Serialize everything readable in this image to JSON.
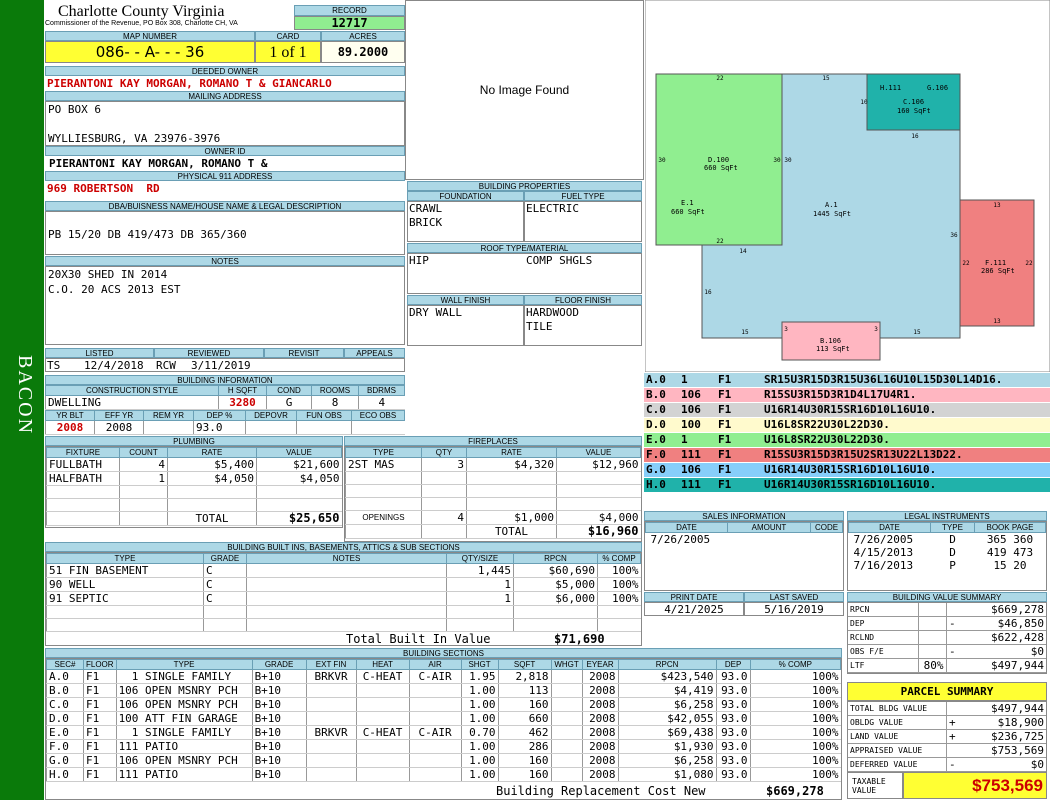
{
  "side_label": "BACON",
  "header": {
    "county": "Charlotte County Virginia",
    "commissioner": "Commissioner of the Revenue, PO Box 308, Charlotte CH, VA",
    "record_label": "RECORD",
    "record": "12717",
    "map_label": "MAP NUMBER",
    "map": "086- - A- - - 36",
    "card_label": "CARD",
    "card": "1 of 1",
    "acres_label": "ACRES",
    "acres": "89.2000"
  },
  "owner": {
    "deeded_label": "DEEDED OWNER",
    "deeded": "PIERANTONI KAY MORGAN, ROMANO T & GIANCARLO",
    "mailing_label": "MAILING ADDRESS",
    "mail1": "PO BOX 6",
    "mail2": "WYLLIESBURG, VA 23976-3976",
    "ownerid_label": "OWNER ID",
    "ownerid": "PIERANTONI KAY MORGAN, ROMANO T &",
    "phys_label": "PHYSICAL 911 ADDRESS",
    "phys": "969 ROBERTSON  RD",
    "dba_label": "DBA/BUISNESS NAME/HOUSE NAME & LEGAL DESCRIPTION",
    "dba": "PB 15/20 DB 419/473 DB 365/360",
    "notes_label": "NOTES",
    "note1": "20X30 SHED IN 2014",
    "note2": "C.O. 20 ACS 2013 EST"
  },
  "image": {
    "text": "No Image Found"
  },
  "bprops": {
    "title": "BUILDING PROPERTIES",
    "foundation_label": "FOUNDATION",
    "fuel_label": "FUEL TYPE",
    "found1": "CRAWL",
    "found2": "BRICK",
    "fuel": "ELECTRIC",
    "roof_label": "ROOF TYPE/MATERIAL",
    "roof1": "HIP",
    "roof2": "COMP SHGLS",
    "wall_label": "WALL FINISH",
    "floor_label": "FLOOR FINISH",
    "wall": "DRY WALL",
    "floor1": "HARDWOOD",
    "floor2": "TILE"
  },
  "listing": {
    "listed_label": "LISTED",
    "reviewed_label": "REVIEWED",
    "revisit_label": "REVISIT",
    "appeals_label": "APPEALS",
    "listed_by": "TS",
    "listed_date": "12/4/2018",
    "reviewed_by": "RCW",
    "reviewed_date": "3/11/2019"
  },
  "binfo": {
    "title": "BUILDING INFORMATION",
    "cs_label": "CONSTRUCTION STYLE",
    "hsqft_label": "H SQFT",
    "cond_label": "COND",
    "rooms_label": "ROOMS",
    "bdrms_label": "BDRMS",
    "style": "DWELLING",
    "hsqft": "3280",
    "cond": "G",
    "rooms": "8",
    "bdrms": "4",
    "yrblt_label": "YR BLT",
    "effyr_label": "EFF YR",
    "remyr_label": "REM YR",
    "dep_label": "DEP %",
    "depovr_label": "DEPOVR",
    "funobs_label": "FUN OBS",
    "ecoobs_label": "ECO OBS",
    "yrblt": "2008",
    "effyr": "2008",
    "dep": "93.0"
  },
  "plumbing": {
    "title": "PLUMBING",
    "h_fixture": "FIXTURE",
    "h_count": "COUNT",
    "h_rate": "RATE",
    "h_value": "VALUE",
    "rows": [
      {
        "fixture": "FULLBATH",
        "count": "4",
        "rate": "$5,400",
        "value": "$21,600"
      },
      {
        "fixture": "HALFBATH",
        "count": "1",
        "rate": "$4,050",
        "value": "$4,050"
      }
    ],
    "total_label": "TOTAL",
    "total": "$25,650"
  },
  "fireplaces": {
    "title": "FIREPLACES",
    "h_type": "TYPE",
    "h_qty": "QTY",
    "h_rate": "RATE",
    "h_value": "VALUE",
    "rows": [
      {
        "type": "2ST MAS",
        "qty": "3",
        "rate": "$4,320",
        "value": "$12,960"
      }
    ],
    "openings_label": "OPENINGS",
    "openings_qty": "4",
    "openings_rate": "$1,000",
    "openings_value": "$4,000",
    "total_label": "TOTAL",
    "total": "$16,960"
  },
  "builtins": {
    "title": "BUILDING BUILT INS, BASEMENTS, ATTICS & SUB SECTIONS",
    "h_type": "TYPE",
    "h_grade": "GRADE",
    "h_notes": "NOTES",
    "h_qty": "QTY/SIZE",
    "h_rpcn": "RPCN",
    "h_comp": "% COMP",
    "rows": [
      {
        "type": "51 FIN BASEMENT",
        "grade": "C",
        "qty": "1,445",
        "rpcn": "$60,690",
        "comp": "100%"
      },
      {
        "type": "90 WELL",
        "grade": "C",
        "qty": "1",
        "rpcn": "$5,000",
        "comp": "100%"
      },
      {
        "type": "91 SEPTIC",
        "grade": "C",
        "qty": "1",
        "rpcn": "$6,000",
        "comp": "100%"
      }
    ],
    "total_label": "Total Built In Value",
    "total": "$71,690"
  },
  "sections": {
    "title": "BUILDING SECTIONS",
    "h": [
      "SEC#",
      "FLOOR",
      "TYPE",
      "GRADE",
      "EXT FIN",
      "HEAT",
      "AIR",
      "SHGT",
      "SQFT",
      "WHGT",
      "EYEAR",
      "RPCN",
      "DEP",
      "% COMP"
    ],
    "rows": [
      {
        "sec": "A.0",
        "floor": "F1",
        "type": "  1 SINGLE FAMILY",
        "grade": "B+10",
        "ext": "BRKVR",
        "heat": "C-HEAT",
        "air": "C-AIR",
        "shgt": "1.95",
        "sqft": "2,818",
        "eyear": "2008",
        "rpcn": "$423,540",
        "dep": "93.0",
        "comp": "100%"
      },
      {
        "sec": "B.0",
        "floor": "F1",
        "type": "106 OPEN MSNRY PCH",
        "grade": "B+10",
        "ext": "",
        "heat": "",
        "air": "",
        "shgt": "1.00",
        "sqft": "113",
        "eyear": "2008",
        "rpcn": "$4,419",
        "dep": "93.0",
        "comp": "100%"
      },
      {
        "sec": "C.0",
        "floor": "F1",
        "type": "106 OPEN MSNRY PCH",
        "grade": "B+10",
        "ext": "",
        "heat": "",
        "air": "",
        "shgt": "1.00",
        "sqft": "160",
        "eyear": "2008",
        "rpcn": "$6,258",
        "dep": "93.0",
        "comp": "100%"
      },
      {
        "sec": "D.0",
        "floor": "F1",
        "type": "100 ATT FIN GARAGE",
        "grade": "B+10",
        "ext": "",
        "heat": "",
        "air": "",
        "shgt": "1.00",
        "sqft": "660",
        "eyear": "2008",
        "rpcn": "$42,055",
        "dep": "93.0",
        "comp": "100%"
      },
      {
        "sec": "E.0",
        "floor": "F1",
        "type": "  1 SINGLE FAMILY",
        "grade": "B+10",
        "ext": "BRKVR",
        "heat": "C-HEAT",
        "air": "C-AIR",
        "shgt": "0.70",
        "sqft": "462",
        "eyear": "2008",
        "rpcn": "$69,438",
        "dep": "93.0",
        "comp": "100%"
      },
      {
        "sec": "F.0",
        "floor": "F1",
        "type": "111 PATIO",
        "grade": "B+10",
        "ext": "",
        "heat": "",
        "air": "",
        "shgt": "1.00",
        "sqft": "286",
        "eyear": "2008",
        "rpcn": "$1,930",
        "dep": "93.0",
        "comp": "100%"
      },
      {
        "sec": "G.0",
        "floor": "F1",
        "type": "106 OPEN MSNRY PCH",
        "grade": "B+10",
        "ext": "",
        "heat": "",
        "air": "",
        "shgt": "1.00",
        "sqft": "160",
        "eyear": "2008",
        "rpcn": "$6,258",
        "dep": "93.0",
        "comp": "100%"
      },
      {
        "sec": "H.0",
        "floor": "F1",
        "type": "111 PATIO",
        "grade": "B+10",
        "ext": "",
        "heat": "",
        "air": "",
        "shgt": "1.00",
        "sqft": "160",
        "eyear": "2008",
        "rpcn": "$1,080",
        "dep": "93.0",
        "comp": "100%"
      }
    ],
    "total_label": "Building Replacement Cost New",
    "total": "$669,278"
  },
  "sketch": {
    "labels": [
      {
        "id": "d",
        "t1": "D.100",
        "t2": "660 SqFt"
      },
      {
        "id": "e",
        "t1": "E.1",
        "t2": "660 SqFt"
      },
      {
        "id": "a",
        "t1": "A.1",
        "t2": "1445 SqFt"
      },
      {
        "id": "h",
        "t1": "H.111",
        "t2": "G.106"
      },
      {
        "id": "c",
        "t1": "C.106",
        "t2": "160 SqFt"
      },
      {
        "id": "f",
        "t1": "F.111",
        "t2": "286 SqFt"
      },
      {
        "id": "b",
        "t1": "B.106",
        "t2": "113 SqFt"
      }
    ],
    "dims": [
      "22",
      "15",
      "10",
      "16",
      "30",
      "30",
      "30",
      "14",
      "22",
      "36",
      "13",
      "22",
      "22",
      "16",
      "13",
      "15",
      "3",
      "3",
      "15"
    ]
  },
  "vectors": [
    {
      "sec": "A.0",
      "n": "1",
      "f": "F1",
      "v": "SR15U3R15D3R15U36L16U10L15D30L14D16.",
      "bg": "#add8e6"
    },
    {
      "sec": "B.0",
      "n": "106",
      "f": "F1",
      "v": "R15SU3R15D3R1D4L17U4R1.",
      "bg": "#ffb6c1"
    },
    {
      "sec": "C.0",
      "n": "106",
      "f": "F1",
      "v": "U16R14U30R15SR16D10L16U10.",
      "bg": "#d3d3d3"
    },
    {
      "sec": "D.0",
      "n": "100",
      "f": "F1",
      "v": "U16L8SR22U30L22D30.",
      "bg": "#fffacd"
    },
    {
      "sec": "E.0",
      "n": "1",
      "f": "F1",
      "v": "U16L8SR22U30L22D30.",
      "bg": "#90ee90"
    },
    {
      "sec": "F.0",
      "n": "111",
      "f": "F1",
      "v": "R15SU3R15D3R15U2SR13U22L13D22.",
      "bg": "#f08080"
    },
    {
      "sec": "G.0",
      "n": "106",
      "f": "F1",
      "v": "U16R14U30R15SR16D10L16U10.",
      "bg": "#87cefa"
    },
    {
      "sec": "H.0",
      "n": "111",
      "f": "F1",
      "v": "U16R14U30R15SR16D10L16U10.",
      "bg": "#20b2aa"
    }
  ],
  "sales": {
    "title": "SALES INFORMATION",
    "h_date": "DATE",
    "h_amount": "AMOUNT",
    "h_code": "CODE",
    "rows": [
      {
        "date": "7/26/2005",
        "amount": "",
        "code": ""
      }
    ]
  },
  "legal": {
    "title": "LEGAL INSTRUMENTS",
    "h_date": "DATE",
    "h_type": "TYPE",
    "h_book": "BOOK PAGE",
    "rows": [
      {
        "date": "7/26/2005",
        "type": "D",
        "book": "365 360"
      },
      {
        "date": "4/15/2013",
        "type": "D",
        "book": "419 473"
      },
      {
        "date": "7/16/2013",
        "type": "P",
        "book": "15 20"
      }
    ]
  },
  "print": {
    "print_label": "PRINT DATE",
    "saved_label": "LAST SAVED",
    "print": "4/21/2025",
    "saved": "5/16/2019"
  },
  "bvs": {
    "title": "BUILDING VALUE SUMMARY",
    "rows": [
      {
        "k": "RPCN",
        "s": "",
        "v": "$669,278"
      },
      {
        "k": "DEP",
        "s": "-",
        "v": "$46,850"
      },
      {
        "k": "RCLND",
        "s": "",
        "v": "$622,428"
      },
      {
        "k": "OBS F/E",
        "s": "-",
        "v": "$0"
      },
      {
        "k": "LTF",
        "p": "80%",
        "s": "",
        "v": "$497,944"
      }
    ]
  },
  "parcel": {
    "title": "PARCEL SUMMARY",
    "rows": [
      {
        "k": "TOTAL BLDG VALUE",
        "s": "",
        "v": "$497,944"
      },
      {
        "k": "OBLDG VALUE",
        "s": "+",
        "v": "$18,900"
      },
      {
        "k": "LAND VALUE",
        "s": "+",
        "v": "$236,725"
      },
      {
        "k": "APPRAISED VALUE",
        "s": "",
        "v": "$753,569"
      },
      {
        "k": "DEFERRED VALUE",
        "s": "-",
        "v": "$0"
      }
    ],
    "taxable_label1": "TAXABLE",
    "taxable_label2": "VALUE",
    "taxable": "$753,569"
  }
}
